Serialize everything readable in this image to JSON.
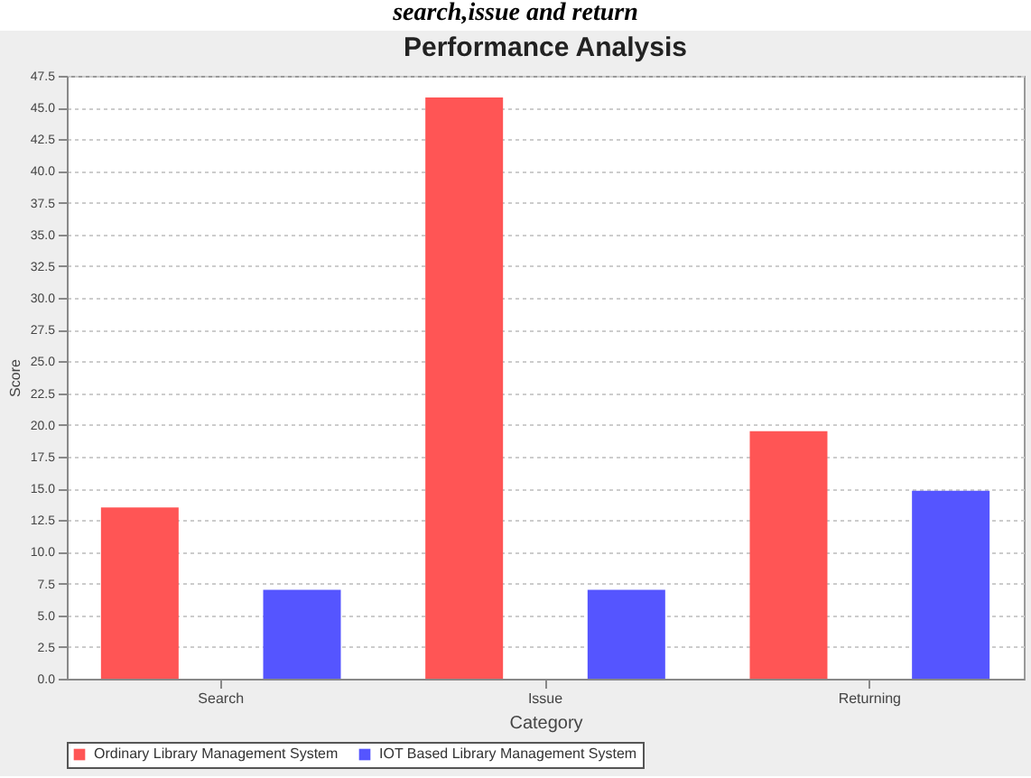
{
  "chart_data": {
    "type": "bar",
    "title": "Performance Analysis",
    "xlabel": "Category",
    "ylabel": "Score",
    "annotations": [
      "search,issue and return"
    ],
    "categories": [
      "Search",
      "Issue",
      "Returning"
    ],
    "series": [
      {
        "name": "Ordinary Library Management System",
        "color": "#ff5555",
        "values": [
          13.5,
          45.8,
          19.5
        ]
      },
      {
        "name": "IOT Based Library Management System",
        "color": "#5555ff",
        "values": [
          7.0,
          7.0,
          14.8
        ]
      }
    ],
    "ylim": [
      0,
      47.5
    ],
    "yticks": [
      {
        "value": 0,
        "label": "0.0"
      },
      {
        "value": 2.5,
        "label": "2.5"
      },
      {
        "value": 5,
        "label": "5.0"
      },
      {
        "value": 7.5,
        "label": "7.5"
      },
      {
        "value": 10,
        "label": "10.0"
      },
      {
        "value": 12.5,
        "label": "12.5"
      },
      {
        "value": 15,
        "label": "15.0"
      },
      {
        "value": 17.5,
        "label": "17.5"
      },
      {
        "value": 20,
        "label": "20.0"
      },
      {
        "value": 22.5,
        "label": "22.5"
      },
      {
        "value": 25,
        "label": "25.0"
      },
      {
        "value": 27.5,
        "label": "27.5"
      },
      {
        "value": 30,
        "label": "30.0"
      },
      {
        "value": 32.5,
        "label": "32.5"
      },
      {
        "value": 35,
        "label": "35.0"
      },
      {
        "value": 37.5,
        "label": "37.5"
      },
      {
        "value": 40,
        "label": "40.0"
      },
      {
        "value": 42.5,
        "label": "42.5"
      },
      {
        "value": 45,
        "label": "45.0"
      },
      {
        "value": 47.5,
        "label": "47.5"
      }
    ],
    "grid": "y",
    "legend": "bottom"
  }
}
